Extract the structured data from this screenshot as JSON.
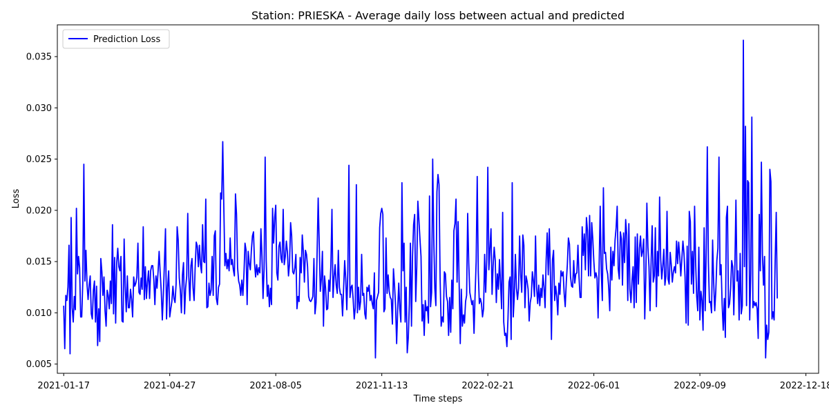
{
  "chart_data": {
    "type": "line",
    "title": "Station: PRIESKA - Average daily loss between actual and predicted",
    "xlabel": "Time steps",
    "ylabel": "Loss",
    "x_range": [
      "2021-01-11",
      "2022-12-30"
    ],
    "ylim": [
      0.0041,
      0.0381
    ],
    "x_ticks": [
      "2021-01-17",
      "2021-04-27",
      "2021-08-05",
      "2021-11-13",
      "2022-02-21",
      "2022-06-01",
      "2022-09-09",
      "2022-12-18"
    ],
    "y_ticks": [
      0.005,
      0.01,
      0.015,
      0.02,
      0.025,
      0.03,
      0.035
    ],
    "y_tick_labels": [
      "0.005",
      "0.010",
      "0.015",
      "0.020",
      "0.025",
      "0.030",
      "0.035"
    ],
    "grid": false,
    "legend_position": "upper-left",
    "series": [
      {
        "name": "Prediction Loss",
        "color": "#0000ff",
        "start_date": "2021-01-17",
        "step_days": 1,
        "y": [
          0.0107,
          0.0065,
          0.0117,
          0.0112,
          0.0125,
          0.0166,
          0.006,
          0.0193,
          0.0105,
          0.0091,
          0.0116,
          0.0103,
          0.0202,
          0.0138,
          0.0155,
          0.0144,
          0.0096,
          0.0096,
          0.013,
          0.0245,
          0.0131,
          0.0161,
          0.0128,
          0.0113,
          0.0127,
          0.0136,
          0.0099,
          0.0094,
          0.0122,
          0.0131,
          0.0091,
          0.0126,
          0.0068,
          0.0104,
          0.0072,
          0.0153,
          0.014,
          0.0117,
          0.0135,
          0.0102,
          0.0087,
          0.0122,
          0.0117,
          0.0104,
          0.0131,
          0.0109,
          0.0186,
          0.0099,
          0.0154,
          0.009,
          0.0149,
          0.0163,
          0.0145,
          0.0141,
          0.0155,
          0.0092,
          0.0091,
          0.0172,
          0.0126,
          0.0101,
          0.0136,
          0.0105,
          0.0105,
          0.0123,
          0.0113,
          0.0096,
          0.0135,
          0.0126,
          0.0129,
          0.0135,
          0.0168,
          0.012,
          0.0118,
          0.0134,
          0.0123,
          0.0184,
          0.0113,
          0.0145,
          0.0114,
          0.013,
          0.0141,
          0.0114,
          0.0141,
          0.0146,
          0.0146,
          0.0132,
          0.0108,
          0.0136,
          0.0124,
          0.014,
          0.016,
          0.0139,
          0.0121,
          0.0093,
          0.0118,
          0.0149,
          0.0182,
          0.0094,
          0.0125,
          0.0141,
          0.0096,
          0.0104,
          0.0111,
          0.0126,
          0.0114,
          0.011,
          0.0128,
          0.0184,
          0.0171,
          0.0134,
          0.0122,
          0.01,
          0.0137,
          0.0149,
          0.0099,
          0.0124,
          0.0136,
          0.0197,
          0.0135,
          0.0112,
          0.0146,
          0.0153,
          0.0124,
          0.0112,
          0.0145,
          0.0169,
          0.0165,
          0.0145,
          0.0166,
          0.0147,
          0.0139,
          0.0186,
          0.015,
          0.0149,
          0.0211,
          0.0105,
          0.0106,
          0.0129,
          0.0117,
          0.0122,
          0.0155,
          0.0117,
          0.0175,
          0.018,
          0.0114,
          0.0108,
          0.0125,
          0.0128,
          0.0217,
          0.0211,
          0.0267,
          0.0204,
          0.0146,
          0.0158,
          0.0143,
          0.0152,
          0.0141,
          0.0173,
          0.0147,
          0.0152,
          0.0142,
          0.0136,
          0.0216,
          0.0196,
          0.0144,
          0.0131,
          0.0127,
          0.0117,
          0.0132,
          0.0117,
          0.0138,
          0.0168,
          0.0161,
          0.0108,
          0.016,
          0.0148,
          0.0142,
          0.0161,
          0.0175,
          0.0179,
          0.0148,
          0.0135,
          0.0147,
          0.0137,
          0.0144,
          0.0139,
          0.0182,
          0.0155,
          0.0114,
          0.0143,
          0.0252,
          0.0151,
          0.0116,
          0.0127,
          0.0106,
          0.0124,
          0.0108,
          0.0202,
          0.0168,
          0.0193,
          0.0205,
          0.0139,
          0.0132,
          0.0165,
          0.0169,
          0.0153,
          0.0149,
          0.0201,
          0.0147,
          0.0155,
          0.017,
          0.0159,
          0.0136,
          0.0148,
          0.0188,
          0.0175,
          0.014,
          0.0138,
          0.0144,
          0.0157,
          0.0104,
          0.0116,
          0.0111,
          0.0154,
          0.0139,
          0.0176,
          0.016,
          0.013,
          0.0161,
          0.0157,
          0.0145,
          0.0116,
          0.0112,
          0.0111,
          0.0113,
          0.0116,
          0.0153,
          0.0099,
          0.011,
          0.0159,
          0.0212,
          0.0167,
          0.0121,
          0.0133,
          0.016,
          0.0087,
          0.0136,
          0.0124,
          0.0103,
          0.0104,
          0.0132,
          0.0121,
          0.0147,
          0.0201,
          0.0115,
          0.0135,
          0.0147,
          0.0127,
          0.0119,
          0.0161,
          0.0125,
          0.0118,
          0.0118,
          0.0097,
          0.0124,
          0.0151,
          0.0133,
          0.0103,
          0.0142,
          0.0244,
          0.0115,
          0.0125,
          0.0127,
          0.0113,
          0.0094,
          0.0105,
          0.0225,
          0.01,
          0.0125,
          0.0103,
          0.0111,
          0.0157,
          0.0117,
          0.0119,
          0.0099,
          0.0094,
          0.0125,
          0.0121,
          0.0127,
          0.0112,
          0.0117,
          0.0109,
          0.0104,
          0.0139,
          0.0056,
          0.0112,
          0.0116,
          0.012,
          0.0183,
          0.0197,
          0.0202,
          0.0196,
          0.0101,
          0.0104,
          0.0173,
          0.0119,
          0.0137,
          0.0121,
          0.0115,
          0.0113,
          0.0089,
          0.0143,
          0.0127,
          0.0107,
          0.007,
          0.0103,
          0.0129,
          0.0104,
          0.0091,
          0.0227,
          0.0141,
          0.0168,
          0.0091,
          0.0125,
          0.0061,
          0.0076,
          0.0109,
          0.0168,
          0.0087,
          0.0155,
          0.0186,
          0.0196,
          0.0111,
          0.0145,
          0.0209,
          0.0191,
          0.0172,
          0.0155,
          0.0092,
          0.0108,
          0.0078,
          0.0112,
          0.0102,
          0.0106,
          0.009,
          0.0214,
          0.0106,
          0.012,
          0.025,
          0.0173,
          0.0124,
          0.0107,
          0.0218,
          0.0235,
          0.0225,
          0.0134,
          0.0087,
          0.0096,
          0.0091,
          0.014,
          0.0138,
          0.0116,
          0.0111,
          0.0078,
          0.0115,
          0.0081,
          0.0132,
          0.0104,
          0.018,
          0.0187,
          0.0211,
          0.013,
          0.0189,
          0.0126,
          0.007,
          0.0123,
          0.0087,
          0.0098,
          0.009,
          0.0111,
          0.0117,
          0.0197,
          0.0149,
          0.012,
          0.0114,
          0.0108,
          0.0112,
          0.008,
          0.0118,
          0.015,
          0.0233,
          0.014,
          0.0109,
          0.0114,
          0.0109,
          0.0096,
          0.0104,
          0.0157,
          0.012,
          0.0152,
          0.0242,
          0.0142,
          0.0163,
          0.0182,
          0.0118,
          0.0146,
          0.0164,
          0.0151,
          0.011,
          0.0138,
          0.0123,
          0.0152,
          0.0129,
          0.0104,
          0.0198,
          0.0091,
          0.0078,
          0.008,
          0.0067,
          0.0094,
          0.013,
          0.0135,
          0.0074,
          0.0227,
          0.0096,
          0.0117,
          0.0157,
          0.0124,
          0.0113,
          0.0124,
          0.0175,
          0.0137,
          0.012,
          0.0176,
          0.0166,
          0.0105,
          0.0136,
          0.0131,
          0.0123,
          0.0092,
          0.011,
          0.0116,
          0.014,
          0.0131,
          0.0116,
          0.0175,
          0.0125,
          0.0109,
          0.0127,
          0.0107,
          0.0124,
          0.0115,
          0.0137,
          0.0125,
          0.0105,
          0.0151,
          0.0178,
          0.0137,
          0.0182,
          0.014,
          0.0074,
          0.0152,
          0.0161,
          0.0112,
          0.0126,
          0.0116,
          0.0098,
          0.0129,
          0.0118,
          0.0141,
          0.0136,
          0.014,
          0.0119,
          0.0106,
          0.013,
          0.0147,
          0.0173,
          0.0167,
          0.0135,
          0.0126,
          0.0125,
          0.0151,
          0.0129,
          0.0138,
          0.0139,
          0.0166,
          0.0135,
          0.0115,
          0.0115,
          0.0184,
          0.0156,
          0.0177,
          0.0142,
          0.0193,
          0.018,
          0.0136,
          0.0195,
          0.0136,
          0.0188,
          0.0172,
          0.015,
          0.0134,
          0.0139,
          0.0134,
          0.0095,
          0.0147,
          0.0204,
          0.0139,
          0.0112,
          0.0222,
          0.0158,
          0.0159,
          0.0143,
          0.0138,
          0.0125,
          0.0102,
          0.0164,
          0.0132,
          0.016,
          0.0146,
          0.0171,
          0.0183,
          0.0204,
          0.0143,
          0.0133,
          0.0179,
          0.0172,
          0.0127,
          0.0178,
          0.0149,
          0.0191,
          0.0176,
          0.0112,
          0.0187,
          0.0123,
          0.011,
          0.0131,
          0.0145,
          0.0105,
          0.0174,
          0.011,
          0.0177,
          0.0128,
          0.0163,
          0.0175,
          0.0155,
          0.016,
          0.0172,
          0.0094,
          0.0134,
          0.0207,
          0.0164,
          0.0145,
          0.0102,
          0.015,
          0.0185,
          0.013,
          0.0136,
          0.0183,
          0.0106,
          0.016,
          0.0136,
          0.0213,
          0.0154,
          0.0133,
          0.0145,
          0.0162,
          0.0127,
          0.0136,
          0.0199,
          0.0133,
          0.0128,
          0.0159,
          0.0147,
          0.013,
          0.014,
          0.0145,
          0.0139,
          0.017,
          0.0148,
          0.0169,
          0.0155,
          0.0136,
          0.0153,
          0.017,
          0.0158,
          0.0135,
          0.009,
          0.0165,
          0.0088,
          0.0199,
          0.0189,
          0.0128,
          0.016,
          0.0119,
          0.0204,
          0.0149,
          0.0116,
          0.0102,
          0.0164,
          0.0093,
          0.0121,
          0.0112,
          0.0083,
          0.0183,
          0.0102,
          0.0163,
          0.0262,
          0.015,
          0.011,
          0.0111,
          0.01,
          0.0171,
          0.013,
          0.0102,
          0.0121,
          0.0151,
          0.0163,
          0.0252,
          0.0137,
          0.0147,
          0.0108,
          0.0083,
          0.0114,
          0.0076,
          0.0193,
          0.0204,
          0.0105,
          0.0109,
          0.0124,
          0.0151,
          0.0145,
          0.0098,
          0.0145,
          0.021,
          0.0131,
          0.0141,
          0.0093,
          0.0158,
          0.0099,
          0.0107,
          0.0366,
          0.0145,
          0.0282,
          0.0107,
          0.0229,
          0.0227,
          0.0093,
          0.0138,
          0.0291,
          0.0105,
          0.0111,
          0.0107,
          0.011,
          0.0104,
          0.0075,
          0.0196,
          0.0141,
          0.0247,
          0.0157,
          0.0127,
          0.0155,
          0.0056,
          0.0088,
          0.0074,
          0.0081,
          0.024,
          0.0228,
          0.0094,
          0.0101,
          0.0093,
          0.0151,
          0.0198,
          0.0114
        ]
      }
    ]
  }
}
